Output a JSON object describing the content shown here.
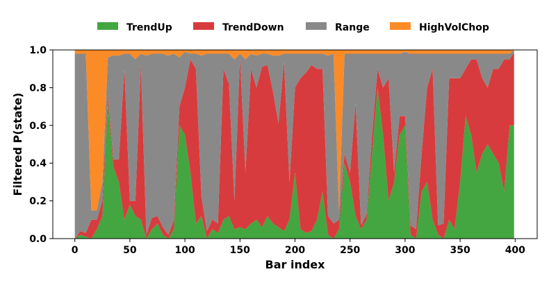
{
  "chart_data": {
    "type": "area",
    "stacked": true,
    "title": "",
    "xlabel": "Bar index",
    "ylabel": "Filtered P(state)",
    "xlim": [
      -20,
      420
    ],
    "ylim": [
      0,
      1
    ],
    "xticks": [
      0,
      50,
      100,
      150,
      200,
      250,
      300,
      350,
      400
    ],
    "yticks": [
      0.0,
      0.2,
      0.4,
      0.6,
      0.8,
      1.0
    ],
    "xtick_labels": [
      "0",
      "50",
      "100",
      "150",
      "200",
      "250",
      "300",
      "350",
      "400"
    ],
    "ytick_labels": [
      "0.0",
      "0.2",
      "0.4",
      "0.6",
      "0.8",
      "1.0"
    ],
    "legend_position": "top-center",
    "grid": false,
    "series": [
      {
        "name": "TrendUp",
        "color": "#43a640"
      },
      {
        "name": "TrendDown",
        "color": "#d83b3d"
      },
      {
        "name": "Range",
        "color": "#898989"
      },
      {
        "name": "HighVolChop",
        "color": "#fb8b27"
      }
    ],
    "x": [
      0,
      5,
      10,
      15,
      20,
      25,
      30,
      35,
      40,
      45,
      50,
      55,
      60,
      65,
      70,
      75,
      80,
      85,
      90,
      95,
      100,
      105,
      110,
      115,
      120,
      125,
      130,
      135,
      140,
      145,
      150,
      155,
      160,
      165,
      170,
      175,
      180,
      185,
      190,
      195,
      200,
      205,
      210,
      215,
      220,
      225,
      230,
      235,
      240,
      245,
      250,
      255,
      260,
      265,
      270,
      275,
      280,
      285,
      290,
      295,
      300,
      305,
      310,
      315,
      320,
      325,
      330,
      335,
      340,
      345,
      350,
      355,
      360,
      365,
      370,
      375,
      380,
      385,
      390,
      395,
      399
    ],
    "TrendUp": [
      0.0,
      0.02,
      0.01,
      0.0,
      0.05,
      0.12,
      0.72,
      0.38,
      0.3,
      0.1,
      0.18,
      0.12,
      0.1,
      0.0,
      0.05,
      0.08,
      0.02,
      0.0,
      0.05,
      0.6,
      0.55,
      0.35,
      0.08,
      0.12,
      0.0,
      0.05,
      0.03,
      0.1,
      0.12,
      0.05,
      0.06,
      0.05,
      0.08,
      0.1,
      0.06,
      0.12,
      0.08,
      0.06,
      0.04,
      0.1,
      0.35,
      0.05,
      0.03,
      0.04,
      0.1,
      0.25,
      0.02,
      0.0,
      0.05,
      0.4,
      0.3,
      0.12,
      0.05,
      0.1,
      0.45,
      0.8,
      0.55,
      0.2,
      0.3,
      0.55,
      0.6,
      0.02,
      0.0,
      0.25,
      0.3,
      0.1,
      0.02,
      0.0,
      0.1,
      0.05,
      0.3,
      0.65,
      0.55,
      0.35,
      0.45,
      0.5,
      0.45,
      0.4,
      0.25,
      0.6,
      0.6
    ],
    "TrendDown": [
      0.0,
      0.02,
      0.02,
      0.1,
      0.05,
      0.08,
      0.04,
      0.04,
      0.12,
      0.8,
      0.02,
      0.08,
      0.82,
      0.02,
      0.06,
      0.04,
      0.04,
      0.02,
      0.05,
      0.1,
      0.25,
      0.6,
      0.82,
      0.1,
      0.04,
      0.05,
      0.05,
      0.8,
      0.7,
      0.15,
      0.9,
      0.3,
      0.82,
      0.7,
      0.85,
      0.8,
      0.7,
      0.55,
      0.9,
      0.2,
      0.45,
      0.8,
      0.85,
      0.88,
      0.8,
      0.65,
      0.1,
      0.08,
      0.05,
      0.05,
      0.05,
      0.6,
      0.02,
      0.03,
      0.1,
      0.1,
      0.25,
      0.65,
      0.05,
      0.1,
      0.05,
      0.05,
      0.05,
      0.2,
      0.5,
      0.8,
      0.05,
      0.08,
      0.75,
      0.8,
      0.55,
      0.25,
      0.4,
      0.6,
      0.4,
      0.3,
      0.45,
      0.5,
      0.7,
      0.35,
      0.39
    ],
    "Range": [
      0.98,
      0.94,
      0.95,
      0.05,
      0.05,
      0.1,
      0.2,
      0.55,
      0.55,
      0.08,
      0.78,
      0.75,
      0.06,
      0.95,
      0.87,
      0.86,
      0.92,
      0.95,
      0.88,
      0.26,
      0.19,
      0.03,
      0.08,
      0.75,
      0.94,
      0.88,
      0.9,
      0.08,
      0.16,
      0.75,
      0.02,
      0.6,
      0.08,
      0.17,
      0.07,
      0.06,
      0.19,
      0.36,
      0.04,
      0.68,
      0.18,
      0.13,
      0.1,
      0.06,
      0.08,
      0.08,
      0.85,
      0.9,
      0.05,
      0.53,
      0.63,
      0.26,
      0.91,
      0.85,
      0.43,
      0.08,
      0.18,
      0.13,
      0.63,
      0.33,
      0.34,
      0.91,
      0.93,
      0.53,
      0.18,
      0.08,
      0.91,
      0.9,
      0.13,
      0.13,
      0.13,
      0.08,
      0.03,
      0.03,
      0.13,
      0.18,
      0.08,
      0.08,
      0.03,
      0.03,
      0.01
    ],
    "HighVolChop": [
      0.02,
      0.02,
      0.02,
      0.85,
      0.85,
      0.7,
      0.04,
      0.03,
      0.03,
      0.02,
      0.02,
      0.05,
      0.02,
      0.03,
      0.02,
      0.02,
      0.02,
      0.03,
      0.02,
      0.04,
      0.01,
      0.02,
      0.02,
      0.03,
      0.02,
      0.02,
      0.02,
      0.02,
      0.02,
      0.05,
      0.02,
      0.05,
      0.02,
      0.03,
      0.02,
      0.02,
      0.03,
      0.03,
      0.02,
      0.02,
      0.02,
      0.02,
      0.02,
      0.02,
      0.02,
      0.02,
      0.03,
      0.02,
      0.85,
      0.02,
      0.02,
      0.02,
      0.02,
      0.02,
      0.02,
      0.02,
      0.02,
      0.02,
      0.02,
      0.02,
      0.01,
      0.02,
      0.02,
      0.02,
      0.02,
      0.02,
      0.02,
      0.02,
      0.02,
      0.02,
      0.02,
      0.02,
      0.02,
      0.02,
      0.02,
      0.02,
      0.02,
      0.02,
      0.02,
      0.02,
      0.0
    ]
  }
}
